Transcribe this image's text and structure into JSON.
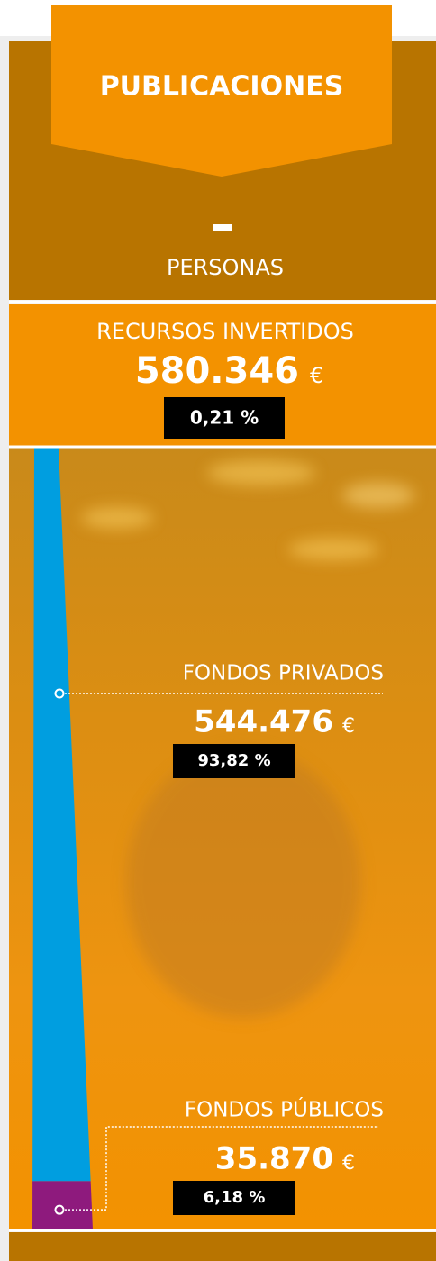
{
  "header": {
    "title": "PUBLICACIONES",
    "subtitle": "PERSONAS"
  },
  "total": {
    "label": "RECURSOS INVERTIDOS",
    "amount": "580.346",
    "currency": "€",
    "share_label": "0,21 %"
  },
  "funds": [
    {
      "label": "FONDOS PRIVADOS",
      "amount": "544.476",
      "currency": "€",
      "share": 93.82,
      "share_label": "93,82 %",
      "color": "#009ee0"
    },
    {
      "label": "FONDOS PÚBLICOS",
      "amount": "35.870",
      "currency": "€",
      "share": 6.18,
      "share_label": "6,18 %",
      "color": "#8e1a7d"
    }
  ]
}
